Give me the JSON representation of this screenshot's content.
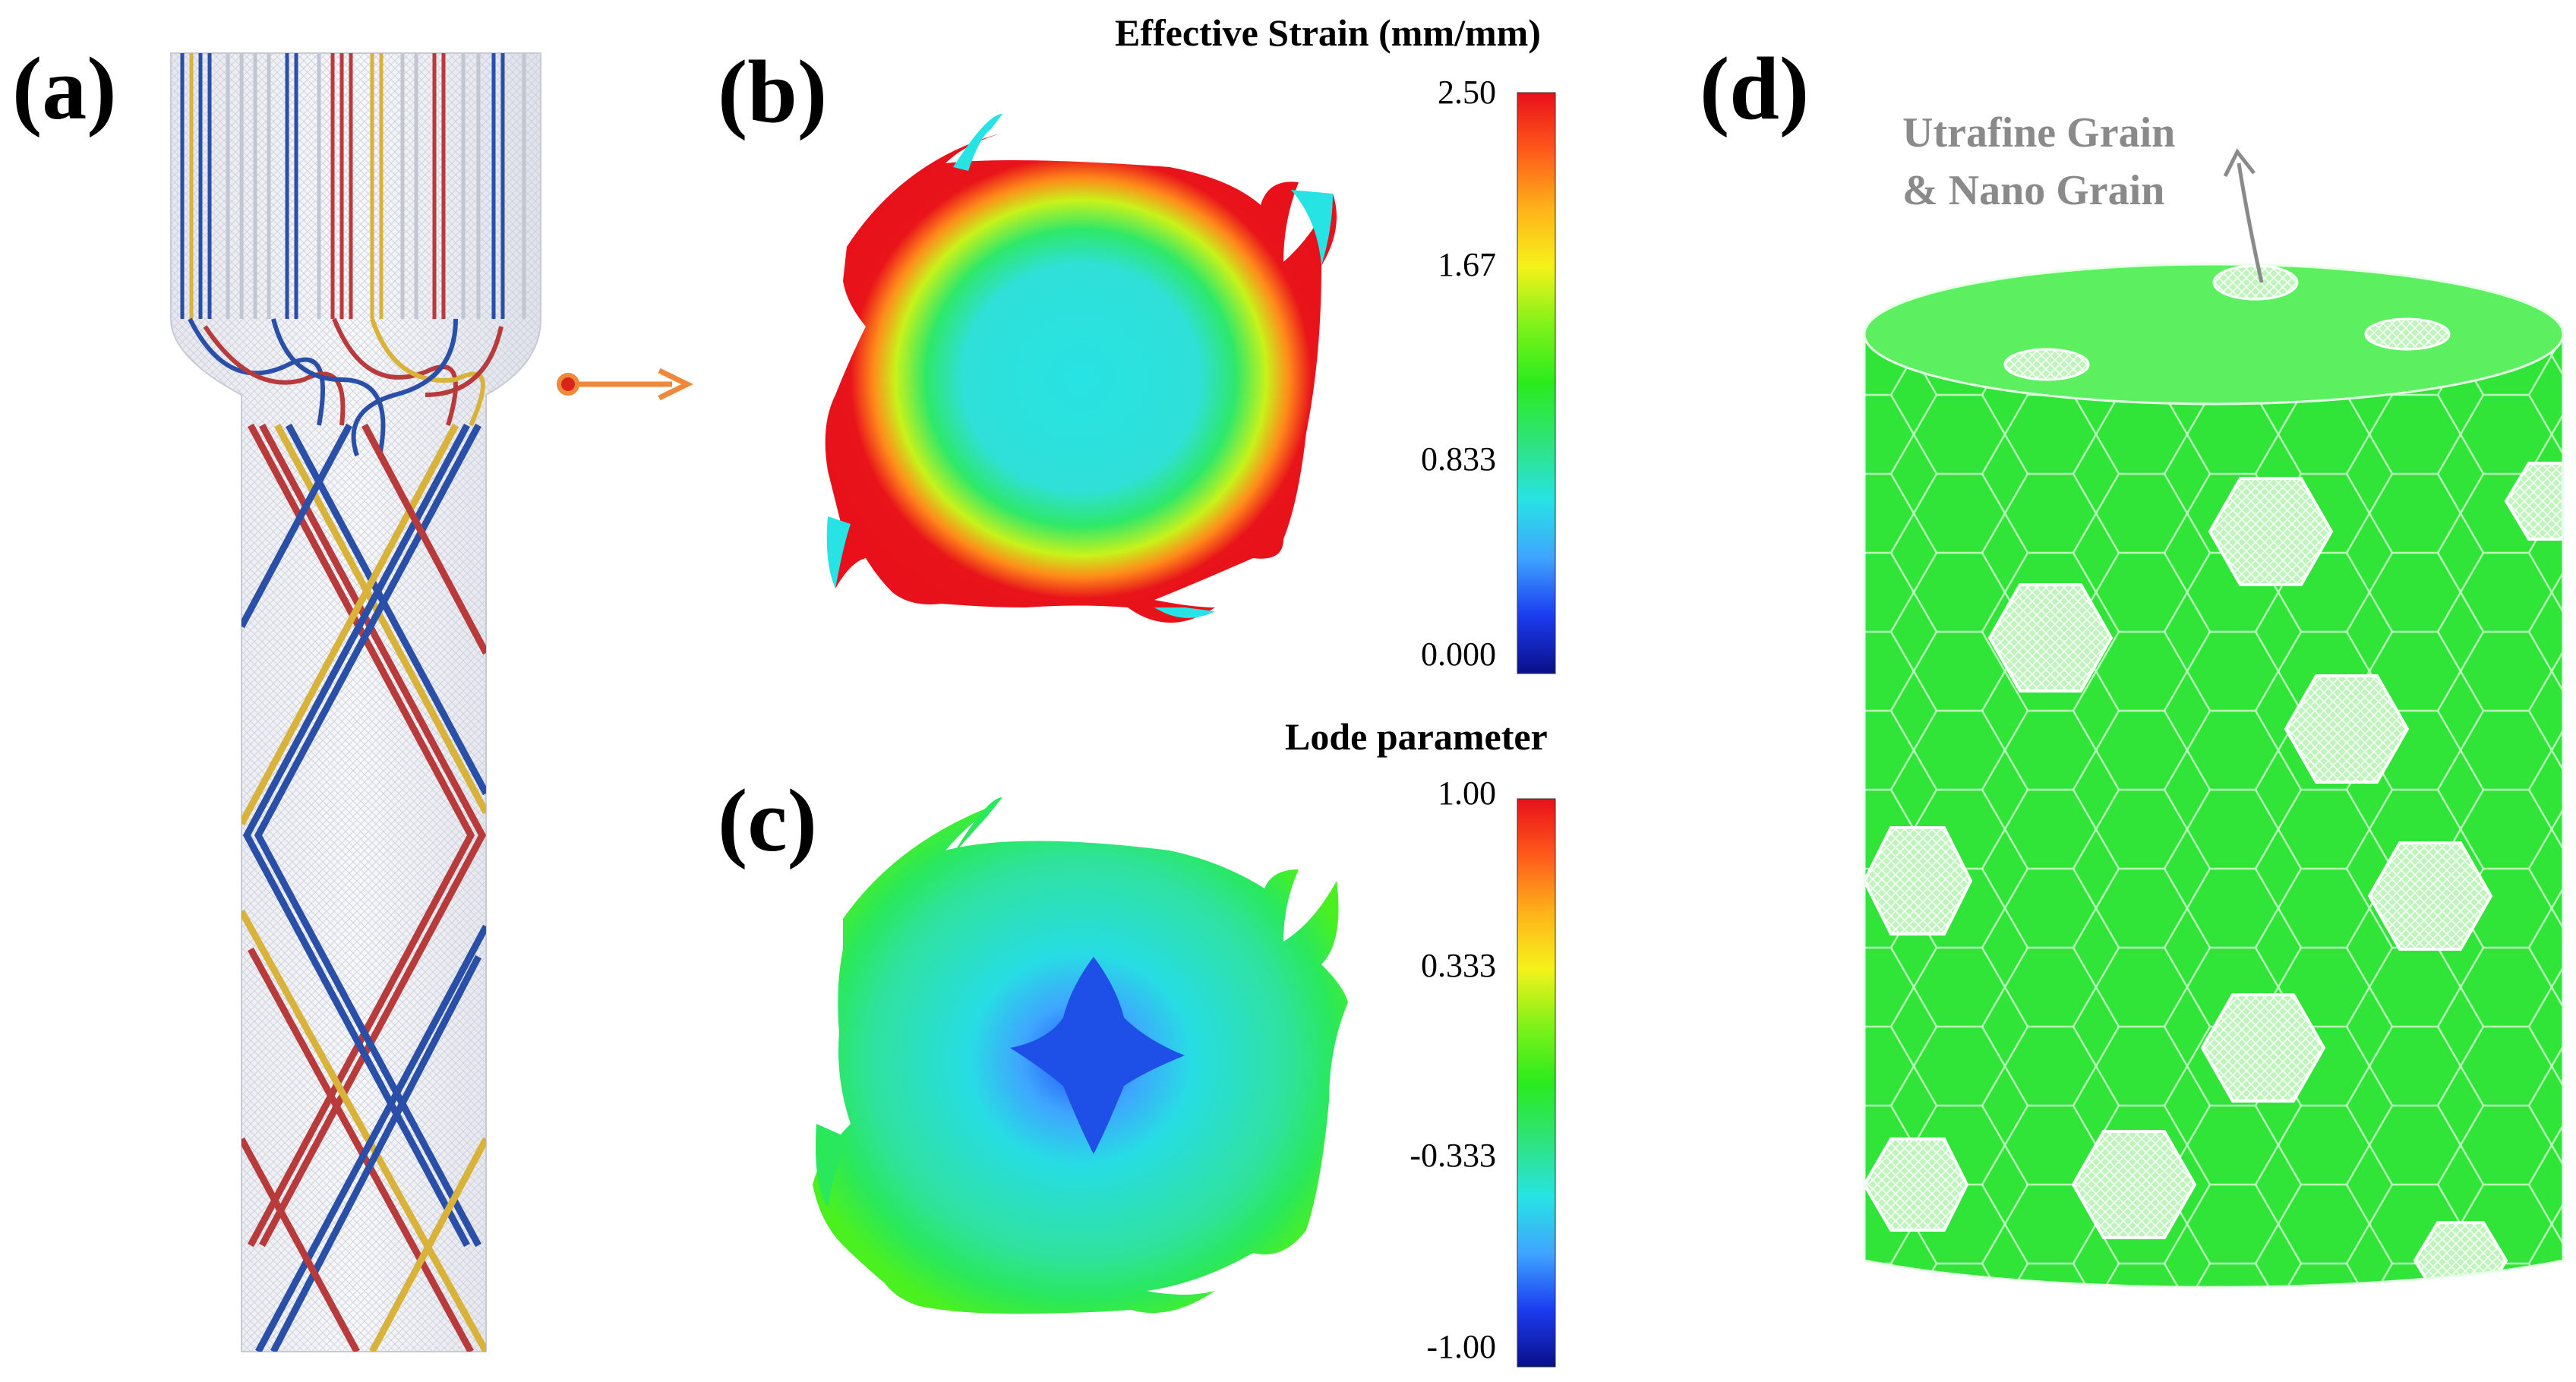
{
  "panels": {
    "a": {
      "label": "(a)"
    },
    "b": {
      "label": "(b)",
      "colorbar_title": "Effective Strain (mm/mm)",
      "ticks": [
        "2.50",
        "1.67",
        "0.833",
        "0.000"
      ]
    },
    "c": {
      "label": "(c)",
      "colorbar_title": "Lode parameter",
      "ticks": [
        "1.00",
        "0.333",
        "-0.333",
        "-1.00"
      ]
    },
    "d": {
      "label": "(d)",
      "annotation_line1": "Utrafine Grain",
      "annotation_line2": "& Nano Grain"
    }
  },
  "colors": {
    "colormap": [
      "#0a0f8a",
      "#1b3cf0",
      "#3fa5ff",
      "#27e3e3",
      "#2fe37a",
      "#2aeb1c",
      "#7ff21a",
      "#f5f21a",
      "#ffb21a",
      "#ff5a1a",
      "#e8101a"
    ],
    "arrow": "#f0883a",
    "grain_green": "#2ce833",
    "wire_blue": "#2a4fa8",
    "wire_red": "#b83a3a",
    "wire_gold": "#d9b23a"
  }
}
